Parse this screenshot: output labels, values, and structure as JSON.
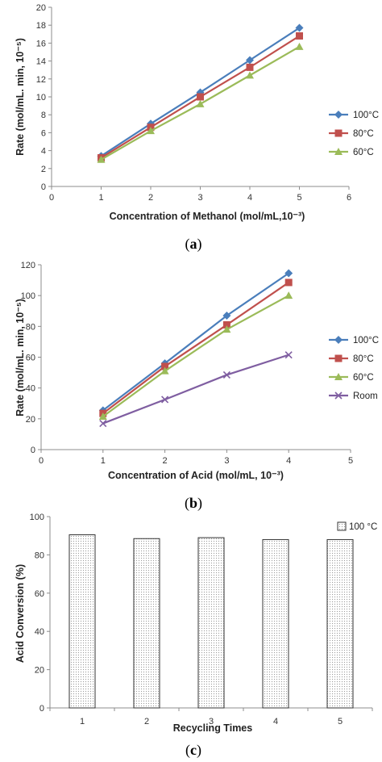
{
  "chart_data": [
    {
      "type": "line",
      "caption": [
        "(",
        "a",
        ")"
      ],
      "xlabel": "Concentration of Methanol (mol/mL,10⁻³)",
      "ylabel": "Rate (mol/mL. min, 10⁻⁵)",
      "xlim": [
        0,
        6
      ],
      "ylim": [
        0,
        20
      ],
      "xticks": [
        0,
        1,
        2,
        3,
        4,
        5,
        6
      ],
      "yticks": [
        0,
        2,
        4,
        6,
        8,
        10,
        12,
        14,
        16,
        18,
        20
      ],
      "x": [
        1,
        2,
        3,
        4,
        5
      ],
      "series": [
        {
          "name": "100°C",
          "values": [
            3.4,
            7.0,
            10.5,
            14.1,
            17.7
          ],
          "color": "#4a7ebb",
          "marker": "diamond"
        },
        {
          "name": "80°C",
          "values": [
            3.2,
            6.6,
            10.0,
            13.3,
            16.8
          ],
          "color": "#c0504d",
          "marker": "square"
        },
        {
          "name": "60°C",
          "values": [
            3.0,
            6.2,
            9.2,
            12.4,
            15.6
          ],
          "color": "#9bbb59",
          "marker": "triangle"
        }
      ],
      "grid": false,
      "legend": "right"
    },
    {
      "type": "line",
      "caption": [
        "(",
        "b",
        ")"
      ],
      "xlabel": "Concentration of Acid (mol/mL, 10⁻³)",
      "ylabel": "Rate (mol/mL. min, 10⁻⁵)",
      "xlim": [
        0,
        5
      ],
      "ylim": [
        0,
        120
      ],
      "xticks": [
        0,
        1,
        2,
        3,
        4,
        5
      ],
      "yticks": [
        0,
        20,
        40,
        60,
        80,
        100,
        120
      ],
      "x": [
        1,
        2,
        3,
        4
      ],
      "series": [
        {
          "name": "100°C",
          "values": [
            25.5,
            56.0,
            87.0,
            114.5
          ],
          "color": "#4a7ebb",
          "marker": "diamond"
        },
        {
          "name": "80°C",
          "values": [
            23.5,
            54.0,
            81.0,
            108.5
          ],
          "color": "#c0504d",
          "marker": "square"
        },
        {
          "name": "60°C",
          "values": [
            21.5,
            51.0,
            78.0,
            100.0
          ],
          "color": "#9bbb59",
          "marker": "triangle"
        },
        {
          "name": "Room",
          "values": [
            17.0,
            32.5,
            48.5,
            61.5
          ],
          "color": "#7f5ea1",
          "marker": "x"
        }
      ],
      "grid": false,
      "legend": "right"
    },
    {
      "type": "bar",
      "caption": [
        "(",
        "c",
        ")"
      ],
      "xlabel": "Recycling Times",
      "ylabel": "Acid Conversion (%)",
      "ylim": [
        0,
        100
      ],
      "yticks": [
        0,
        20,
        40,
        60,
        80,
        100
      ],
      "categories": [
        "1",
        "2",
        "3",
        "4",
        "5"
      ],
      "series": [
        {
          "name": "100 °C",
          "values": [
            90.5,
            88.5,
            89.0,
            88.0,
            88.0
          ]
        }
      ],
      "grid": false,
      "legend": "top-right"
    }
  ]
}
